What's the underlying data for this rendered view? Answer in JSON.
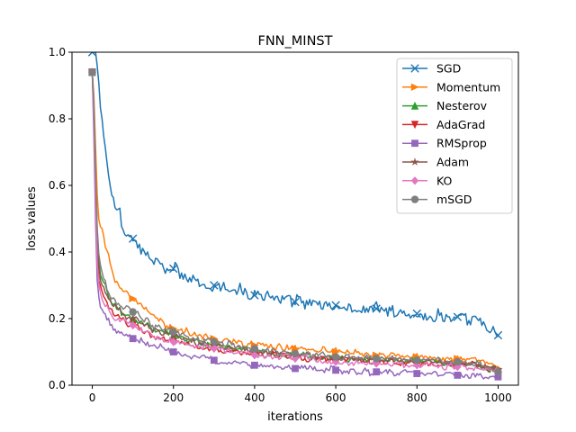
{
  "chart_data": {
    "type": "line",
    "title": "FNN_MINST",
    "xlabel": "iterations",
    "ylabel": "loss values",
    "xlim": [
      -50,
      1050
    ],
    "ylim": [
      0.0,
      1.0
    ],
    "xticks": [
      0,
      200,
      400,
      600,
      800,
      1000
    ],
    "yticks": [
      0.0,
      0.2,
      0.4,
      0.6,
      0.8,
      1.0
    ],
    "xtick_labels": [
      "0",
      "200",
      "400",
      "600",
      "800",
      "1000"
    ],
    "ytick_labels": [
      "0.0",
      "0.2",
      "0.4",
      "0.6",
      "0.8",
      "1.0"
    ],
    "grid": false,
    "legend_position": "top-right",
    "x": [
      0,
      5,
      10,
      15,
      20,
      30,
      40,
      50,
      60,
      80,
      100,
      125,
      150,
      175,
      200,
      250,
      300,
      350,
      400,
      450,
      500,
      550,
      600,
      650,
      700,
      750,
      800,
      850,
      900,
      950,
      1000
    ],
    "series": [
      {
        "name": "SGD",
        "marker": "x",
        "color": "#1f77b4",
        "values": [
          1.0,
          1.0,
          1.0,
          0.93,
          0.85,
          0.72,
          0.63,
          0.57,
          0.53,
          0.47,
          0.44,
          0.4,
          0.38,
          0.36,
          0.35,
          0.32,
          0.3,
          0.29,
          0.27,
          0.26,
          0.25,
          0.245,
          0.24,
          0.235,
          0.23,
          0.22,
          0.215,
          0.21,
          0.205,
          0.195,
          0.15
        ]
      },
      {
        "name": "Momentum",
        "marker": ">",
        "color": "#ff7f0e",
        "values": [
          0.94,
          0.85,
          0.62,
          0.5,
          0.48,
          0.43,
          0.38,
          0.34,
          0.31,
          0.28,
          0.26,
          0.23,
          0.21,
          0.19,
          0.17,
          0.155,
          0.14,
          0.13,
          0.12,
          0.115,
          0.11,
          0.105,
          0.1,
          0.095,
          0.09,
          0.088,
          0.085,
          0.082,
          0.08,
          0.075,
          0.05
        ]
      },
      {
        "name": "Nesterov",
        "marker": "^",
        "color": "#2ca02c",
        "values": [
          0.94,
          0.8,
          0.5,
          0.38,
          0.34,
          0.3,
          0.27,
          0.25,
          0.23,
          0.21,
          0.2,
          0.19,
          0.17,
          0.16,
          0.15,
          0.13,
          0.12,
          0.11,
          0.1,
          0.095,
          0.09,
          0.085,
          0.08,
          0.078,
          0.075,
          0.072,
          0.07,
          0.068,
          0.065,
          0.06,
          0.045
        ]
      },
      {
        "name": "AdaGrad",
        "marker": "v",
        "color": "#d62728",
        "values": [
          0.94,
          0.78,
          0.45,
          0.33,
          0.3,
          0.26,
          0.24,
          0.22,
          0.21,
          0.19,
          0.18,
          0.165,
          0.15,
          0.14,
          0.13,
          0.12,
          0.11,
          0.1,
          0.095,
          0.09,
          0.085,
          0.08,
          0.078,
          0.075,
          0.072,
          0.07,
          0.067,
          0.065,
          0.063,
          0.06,
          0.04
        ]
      },
      {
        "name": "RMSprop",
        "marker": "s",
        "color": "#9467bd",
        "values": [
          0.94,
          0.7,
          0.35,
          0.27,
          0.24,
          0.21,
          0.19,
          0.17,
          0.16,
          0.15,
          0.14,
          0.13,
          0.12,
          0.11,
          0.1,
          0.085,
          0.075,
          0.07,
          0.06,
          0.055,
          0.05,
          0.048,
          0.045,
          0.042,
          0.04,
          0.038,
          0.035,
          0.033,
          0.03,
          0.028,
          0.025
        ]
      },
      {
        "name": "Adam",
        "marker": "*",
        "color": "#8c564b",
        "values": [
          0.94,
          0.8,
          0.48,
          0.36,
          0.32,
          0.28,
          0.26,
          0.24,
          0.23,
          0.21,
          0.2,
          0.18,
          0.17,
          0.16,
          0.15,
          0.13,
          0.12,
          0.11,
          0.1,
          0.095,
          0.09,
          0.085,
          0.08,
          0.078,
          0.075,
          0.072,
          0.07,
          0.068,
          0.065,
          0.06,
          0.045
        ]
      },
      {
        "name": "KO",
        "marker": "D",
        "color": "#e377c2",
        "values": [
          0.94,
          0.75,
          0.42,
          0.31,
          0.28,
          0.25,
          0.23,
          0.21,
          0.2,
          0.19,
          0.18,
          0.16,
          0.15,
          0.14,
          0.13,
          0.12,
          0.11,
          0.1,
          0.09,
          0.085,
          0.08,
          0.075,
          0.07,
          0.068,
          0.065,
          0.062,
          0.06,
          0.058,
          0.055,
          0.05,
          0.04
        ]
      },
      {
        "name": "mSGD",
        "marker": "o",
        "color": "#7f7f7f",
        "values": [
          0.94,
          0.82,
          0.52,
          0.4,
          0.36,
          0.31,
          0.28,
          0.26,
          0.25,
          0.23,
          0.22,
          0.2,
          0.18,
          0.17,
          0.16,
          0.14,
          0.13,
          0.12,
          0.11,
          0.1,
          0.095,
          0.09,
          0.085,
          0.082,
          0.08,
          0.077,
          0.075,
          0.072,
          0.07,
          0.065,
          0.04
        ]
      }
    ]
  }
}
